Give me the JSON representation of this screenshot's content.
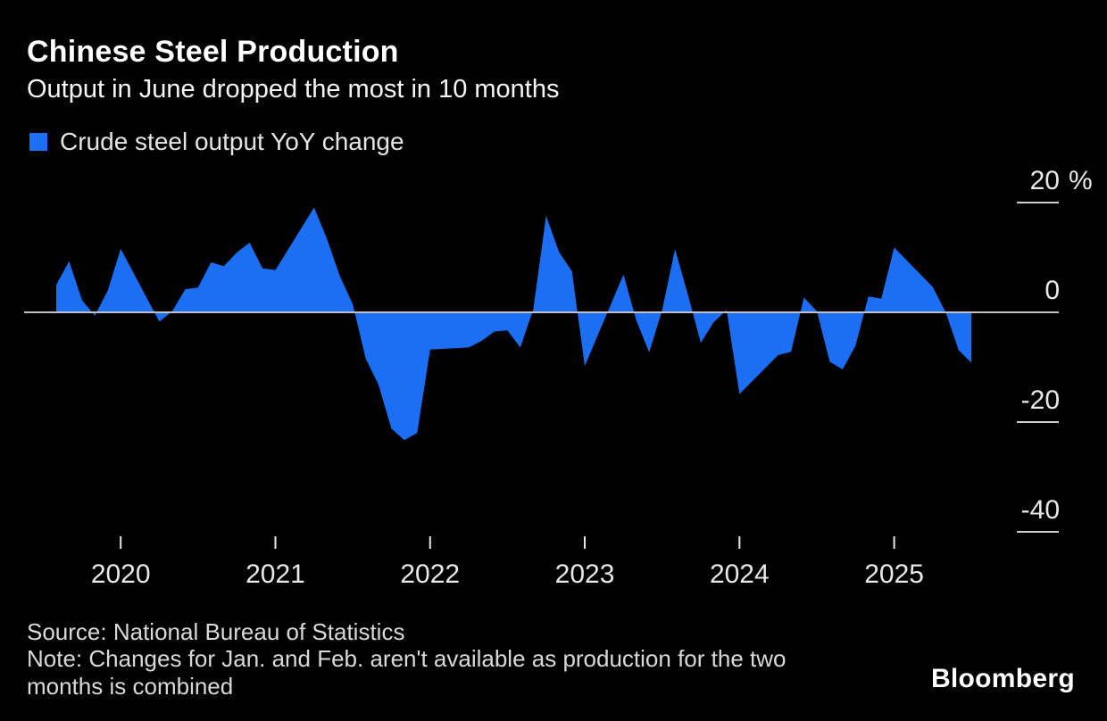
{
  "header": {
    "title": "Chinese Steel Production",
    "subtitle": "Output in June dropped the most in 10 months"
  },
  "legend": {
    "label": "Crude steel output YoY change"
  },
  "footer": {
    "source": "Source: National Bureau of Statistics",
    "note_lines": [
      "Note: Changes for Jan. and Feb. aren't available as production for the two",
      "months is combined"
    ],
    "brand": "Bloomberg"
  },
  "colors": {
    "background": "#000000",
    "area": "#1c6ef2",
    "zero_line": "#c0c0c0",
    "grid_tick": "#cfcfcf",
    "axis_tick": "#e8e8e8",
    "text": "#ffffff"
  },
  "chart_data": {
    "type": "area",
    "title": "Chinese Steel Production",
    "subtitle": "Output in June dropped the most in 10 months",
    "series_name": "Crude steel output YoY change",
    "unit": "%",
    "baseline": 0,
    "grid": "right-tick-marks",
    "legend_position": "top-left",
    "ylim": [
      -45,
      22
    ],
    "y_ticks": [
      {
        "label": "20",
        "value": 20,
        "unit": "%"
      },
      {
        "label": "0",
        "value": 0
      },
      {
        "label": "-20",
        "value": -20
      },
      {
        "label": "-40",
        "value": -40
      }
    ],
    "x_ticks": [
      "2020",
      "2021",
      "2022",
      "2023",
      "2024",
      "2025"
    ],
    "x_note": "monthly points plotted at month end; Jan and Feb omitted each year",
    "points": [
      {
        "d": "2019-07",
        "v": 5.0
      },
      {
        "d": "2019-08",
        "v": 9.3
      },
      {
        "d": "2019-09",
        "v": 2.2
      },
      {
        "d": "2019-10",
        "v": -0.6
      },
      {
        "d": "2019-11",
        "v": 4.0
      },
      {
        "d": "2019-12",
        "v": 11.6
      },
      {
        "d": "2020-03",
        "v": -1.7
      },
      {
        "d": "2020-04",
        "v": 0.2
      },
      {
        "d": "2020-05",
        "v": 4.2
      },
      {
        "d": "2020-06",
        "v": 4.5
      },
      {
        "d": "2020-07",
        "v": 9.1
      },
      {
        "d": "2020-08",
        "v": 8.4
      },
      {
        "d": "2020-09",
        "v": 10.9
      },
      {
        "d": "2020-10",
        "v": 12.7
      },
      {
        "d": "2020-11",
        "v": 8.0
      },
      {
        "d": "2020-12",
        "v": 7.7
      },
      {
        "d": "2021-03",
        "v": 19.1
      },
      {
        "d": "2021-04",
        "v": 13.4
      },
      {
        "d": "2021-05",
        "v": 6.6
      },
      {
        "d": "2021-06",
        "v": 1.5
      },
      {
        "d": "2021-07",
        "v": -8.4
      },
      {
        "d": "2021-08",
        "v": -13.2
      },
      {
        "d": "2021-09",
        "v": -21.2
      },
      {
        "d": "2021-10",
        "v": -23.3
      },
      {
        "d": "2021-11",
        "v": -22.0
      },
      {
        "d": "2021-12",
        "v": -6.8
      },
      {
        "d": "2022-03",
        "v": -6.4
      },
      {
        "d": "2022-04",
        "v": -5.2
      },
      {
        "d": "2022-05",
        "v": -3.5
      },
      {
        "d": "2022-06",
        "v": -3.3
      },
      {
        "d": "2022-07",
        "v": -6.4
      },
      {
        "d": "2022-08",
        "v": 0.5
      },
      {
        "d": "2022-09",
        "v": 17.6
      },
      {
        "d": "2022-10",
        "v": 11.0
      },
      {
        "d": "2022-11",
        "v": 7.5
      },
      {
        "d": "2022-12",
        "v": -9.8
      },
      {
        "d": "2023-03",
        "v": 6.9
      },
      {
        "d": "2023-04",
        "v": -1.5
      },
      {
        "d": "2023-05",
        "v": -7.3
      },
      {
        "d": "2023-06",
        "v": 0.4
      },
      {
        "d": "2023-07",
        "v": 11.5
      },
      {
        "d": "2023-08",
        "v": 3.2
      },
      {
        "d": "2023-09",
        "v": -5.6
      },
      {
        "d": "2023-10",
        "v": -1.8
      },
      {
        "d": "2023-11",
        "v": 0.4
      },
      {
        "d": "2023-12",
        "v": -14.9
      },
      {
        "d": "2024-03",
        "v": -7.8
      },
      {
        "d": "2024-04",
        "v": -7.2
      },
      {
        "d": "2024-05",
        "v": 2.7
      },
      {
        "d": "2024-06",
        "v": 0.2
      },
      {
        "d": "2024-07",
        "v": -9.0
      },
      {
        "d": "2024-08",
        "v": -10.4
      },
      {
        "d": "2024-09",
        "v": -6.1
      },
      {
        "d": "2024-10",
        "v": 2.9
      },
      {
        "d": "2024-11",
        "v": 2.5
      },
      {
        "d": "2024-12",
        "v": 11.8
      },
      {
        "d": "2025-03",
        "v": 4.6
      },
      {
        "d": "2025-04",
        "v": 0.0
      },
      {
        "d": "2025-05",
        "v": -6.9
      },
      {
        "d": "2025-06",
        "v": -9.2
      }
    ]
  }
}
